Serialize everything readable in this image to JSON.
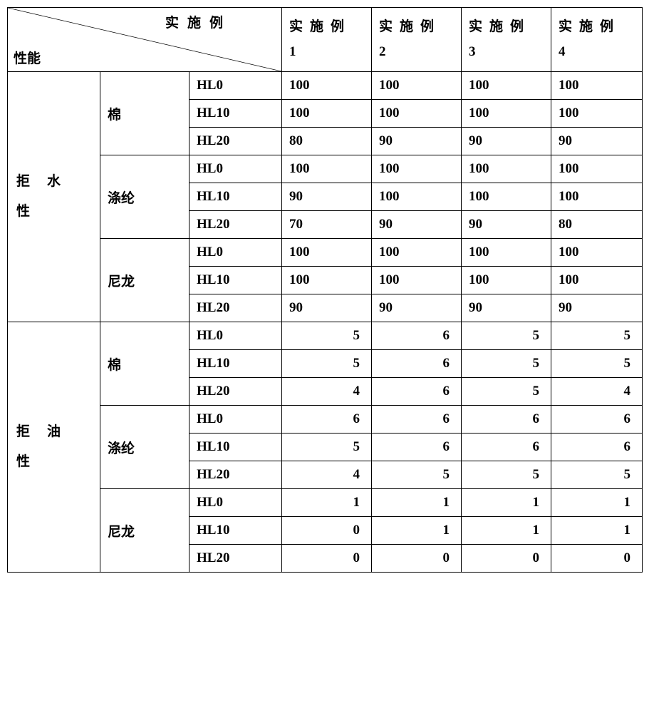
{
  "header": {
    "diagonal_top": "实施例",
    "diagonal_bottom": "性能",
    "columns": [
      "实施例 1",
      "实施例 2",
      "实施例 3",
      "实施例 4"
    ]
  },
  "groups": [
    {
      "label": "拒水性",
      "align": "left",
      "materials": [
        {
          "name": "棉",
          "rows": [
            {
              "test": "HL0",
              "values": [
                "100",
                "100",
                "100",
                "100"
              ]
            },
            {
              "test": "HL10",
              "values": [
                "100",
                "100",
                "100",
                "100"
              ]
            },
            {
              "test": "HL20",
              "values": [
                "80",
                "90",
                "90",
                "90"
              ]
            }
          ]
        },
        {
          "name": "涤纶",
          "rows": [
            {
              "test": "HL0",
              "values": [
                "100",
                "100",
                "100",
                "100"
              ]
            },
            {
              "test": "HL10",
              "values": [
                "90",
                "100",
                "100",
                "100"
              ]
            },
            {
              "test": "HL20",
              "values": [
                "70",
                "90",
                "90",
                "80"
              ]
            }
          ]
        },
        {
          "name": "尼龙",
          "rows": [
            {
              "test": "HL0",
              "values": [
                "100",
                "100",
                "100",
                "100"
              ]
            },
            {
              "test": "HL10",
              "values": [
                "100",
                "100",
                "100",
                "100"
              ]
            },
            {
              "test": "HL20",
              "values": [
                "90",
                "90",
                "90",
                "90"
              ]
            }
          ]
        }
      ]
    },
    {
      "label": "拒油性",
      "align": "right",
      "materials": [
        {
          "name": "棉",
          "rows": [
            {
              "test": "HL0",
              "values": [
                "5",
                "6",
                "5",
                "5"
              ]
            },
            {
              "test": "HL10",
              "values": [
                "5",
                "6",
                "5",
                "5"
              ]
            },
            {
              "test": "HL20",
              "values": [
                "4",
                "6",
                "5",
                "4"
              ]
            }
          ]
        },
        {
          "name": "涤纶",
          "rows": [
            {
              "test": "HL0",
              "values": [
                "6",
                "6",
                "6",
                "6"
              ]
            },
            {
              "test": "HL10",
              "values": [
                "5",
                "6",
                "6",
                "6"
              ]
            },
            {
              "test": "HL20",
              "values": [
                "4",
                "5",
                "5",
                "5"
              ]
            }
          ]
        },
        {
          "name": "尼龙",
          "rows": [
            {
              "test": "HL0",
              "values": [
                "1",
                "1",
                "1",
                "1"
              ]
            },
            {
              "test": "HL10",
              "values": [
                "0",
                "1",
                "1",
                "1"
              ]
            },
            {
              "test": "HL20",
              "values": [
                "0",
                "0",
                "0",
                "0"
              ]
            }
          ]
        }
      ]
    }
  ],
  "style": {
    "border_color": "#000000",
    "background": "#ffffff",
    "font_size_pt": 14,
    "font_weight": "bold"
  }
}
